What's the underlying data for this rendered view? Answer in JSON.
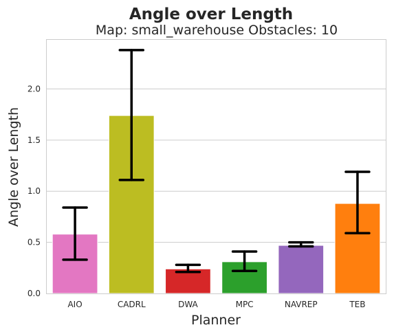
{
  "chart_data": {
    "type": "bar",
    "title": "Angle over Length",
    "subtitle": "Map: small_warehouse Obstacles: 10",
    "xlabel": "Planner",
    "ylabel": "Angle over Length",
    "categories": [
      "AIO",
      "CADRL",
      "DWA",
      "MPC",
      "NAVREP",
      "TEB"
    ],
    "values": [
      0.58,
      1.74,
      0.24,
      0.31,
      0.47,
      0.88
    ],
    "error_low": [
      0.33,
      1.11,
      0.21,
      0.22,
      0.46,
      0.59
    ],
    "error_high": [
      0.84,
      2.38,
      0.28,
      0.41,
      0.5,
      1.19
    ],
    "colors": [
      "#e377c2",
      "#bcbd22",
      "#d62728",
      "#2ca02c",
      "#9467bd",
      "#ff7f0e"
    ],
    "yticks": [
      "0.0",
      "0.5",
      "1.0",
      "1.5",
      "2.0"
    ],
    "ylim": [
      0,
      2.48
    ],
    "grid": "y"
  }
}
